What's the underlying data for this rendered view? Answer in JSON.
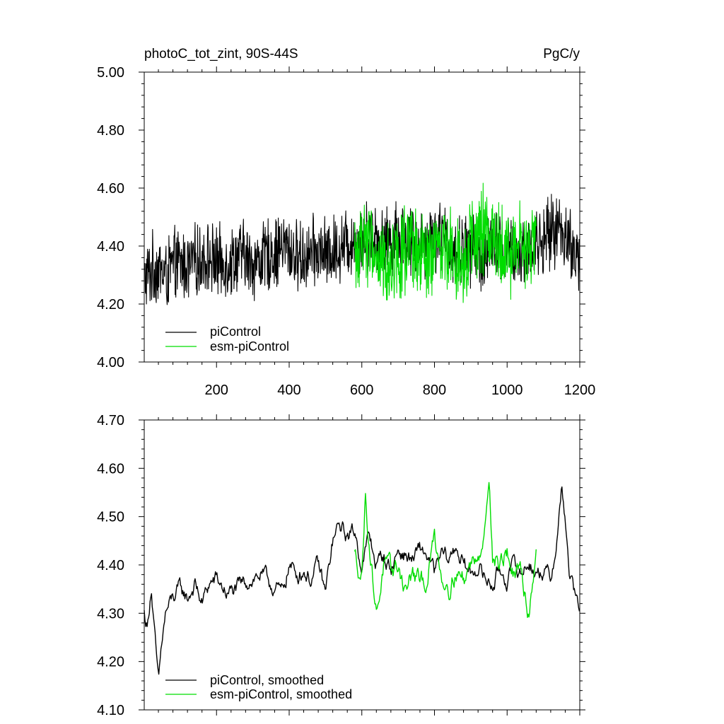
{
  "figure": {
    "title_left": "photoC_tot_zint, 90S-44S",
    "title_right": "PgC/y"
  },
  "colors": {
    "piControl": "#000000",
    "esm-piControl": "#00dd00"
  },
  "chart_data": [
    {
      "type": "line",
      "title": "photoC_tot_zint, 90S-44S",
      "units": "PgC/y",
      "xlim": [
        1,
        1200
      ],
      "ylim": [
        4.0,
        5.0
      ],
      "x_ticks": [
        200,
        400,
        600,
        800,
        1000,
        1200
      ],
      "x_tick_labels": [
        "200",
        "400",
        "600",
        "800",
        "1000",
        "1200"
      ],
      "y_ticks": [
        4.0,
        4.2,
        4.4,
        4.6,
        4.8,
        5.0
      ],
      "y_tick_labels": [
        "4.00",
        "4.20",
        "4.40",
        "4.60",
        "4.80",
        "5.00"
      ],
      "legend_position": "bottom-left",
      "series": [
        {
          "name": "piControl",
          "color": "#000000",
          "x": [
            1,
            30,
            60,
            90,
            120,
            150,
            180,
            210,
            240,
            270,
            300,
            330,
            360,
            390,
            420,
            450,
            480,
            510,
            540,
            570,
            600,
            630,
            660,
            690,
            720,
            750,
            780,
            810,
            840,
            870,
            900,
            930,
            960,
            990,
            1020,
            1050,
            1080,
            1110,
            1140,
            1170,
            1200
          ],
          "values": [
            4.28,
            4.33,
            4.3,
            4.34,
            4.33,
            4.35,
            4.36,
            4.34,
            4.35,
            4.37,
            4.34,
            4.36,
            4.38,
            4.4,
            4.36,
            4.37,
            4.38,
            4.37,
            4.4,
            4.42,
            4.41,
            4.45,
            4.4,
            4.44,
            4.43,
            4.41,
            4.42,
            4.44,
            4.4,
            4.38,
            4.39,
            4.36,
            4.4,
            4.39,
            4.36,
            4.38,
            4.41,
            4.43,
            4.47,
            4.42,
            4.33
          ],
          "noise_amplitude": 0.12
        },
        {
          "name": "esm-piControl",
          "color": "#00dd00",
          "x": [
            580,
            610,
            640,
            670,
            700,
            730,
            760,
            790,
            820,
            850,
            880,
            910,
            940,
            970,
            1000,
            1030,
            1060,
            1080
          ],
          "values": [
            4.35,
            4.44,
            4.36,
            4.33,
            4.38,
            4.37,
            4.36,
            4.34,
            4.41,
            4.38,
            4.36,
            4.4,
            4.45,
            4.42,
            4.37,
            4.4,
            4.38,
            4.42
          ],
          "noise_amplitude": 0.15
        }
      ]
    },
    {
      "type": "line",
      "xlim": [
        1,
        1200
      ],
      "ylim": [
        4.1,
        4.7
      ],
      "x_ticks": [
        200,
        400,
        600,
        800,
        1000,
        1200
      ],
      "y_ticks": [
        4.1,
        4.2,
        4.3,
        4.4,
        4.5,
        4.6,
        4.7
      ],
      "y_tick_labels": [
        "4.10",
        "4.20",
        "4.30",
        "4.40",
        "4.50",
        "4.60",
        "4.70"
      ],
      "legend_position": "bottom-left",
      "series": [
        {
          "name": "piControl, smoothed",
          "color": "#000000",
          "x": [
            1,
            10,
            20,
            30,
            40,
            50,
            60,
            80,
            100,
            120,
            140,
            160,
            180,
            200,
            230,
            260,
            290,
            320,
            350,
            380,
            400,
            420,
            440,
            460,
            480,
            500,
            520,
            540,
            560,
            580,
            600,
            620,
            640,
            660,
            680,
            700,
            720,
            740,
            760,
            780,
            800,
            820,
            840,
            860,
            880,
            900,
            920,
            940,
            960,
            980,
            1000,
            1020,
            1040,
            1060,
            1080,
            1100,
            1120,
            1140,
            1150,
            1160,
            1170,
            1180,
            1190,
            1200
          ],
          "values": [
            4.3,
            4.27,
            4.36,
            4.25,
            4.15,
            4.24,
            4.3,
            4.33,
            4.35,
            4.33,
            4.36,
            4.32,
            4.36,
            4.37,
            4.34,
            4.35,
            4.37,
            4.38,
            4.36,
            4.34,
            4.4,
            4.38,
            4.39,
            4.37,
            4.4,
            4.34,
            4.45,
            4.48,
            4.46,
            4.47,
            4.4,
            4.46,
            4.4,
            4.42,
            4.39,
            4.43,
            4.42,
            4.41,
            4.43,
            4.42,
            4.38,
            4.42,
            4.41,
            4.44,
            4.4,
            4.38,
            4.4,
            4.37,
            4.36,
            4.39,
            4.37,
            4.4,
            4.38,
            4.41,
            4.38,
            4.39,
            4.37,
            4.47,
            4.56,
            4.5,
            4.38,
            4.36,
            4.32,
            4.31
          ],
          "noise_amplitude": 0.025
        },
        {
          "name": "esm-piControl, smoothed",
          "color": "#00dd00",
          "x": [
            580,
            600,
            610,
            620,
            640,
            660,
            680,
            700,
            720,
            740,
            760,
            780,
            800,
            820,
            840,
            860,
            880,
            900,
            920,
            940,
            950,
            960,
            980,
            1000,
            1020,
            1040,
            1060,
            1080
          ],
          "values": [
            4.42,
            4.38,
            4.55,
            4.45,
            4.3,
            4.4,
            4.38,
            4.4,
            4.35,
            4.38,
            4.36,
            4.37,
            4.46,
            4.38,
            4.36,
            4.39,
            4.37,
            4.4,
            4.43,
            4.47,
            4.6,
            4.42,
            4.4,
            4.43,
            4.37,
            4.38,
            4.3,
            4.44
          ],
          "noise_amplitude": 0.03
        }
      ]
    }
  ]
}
